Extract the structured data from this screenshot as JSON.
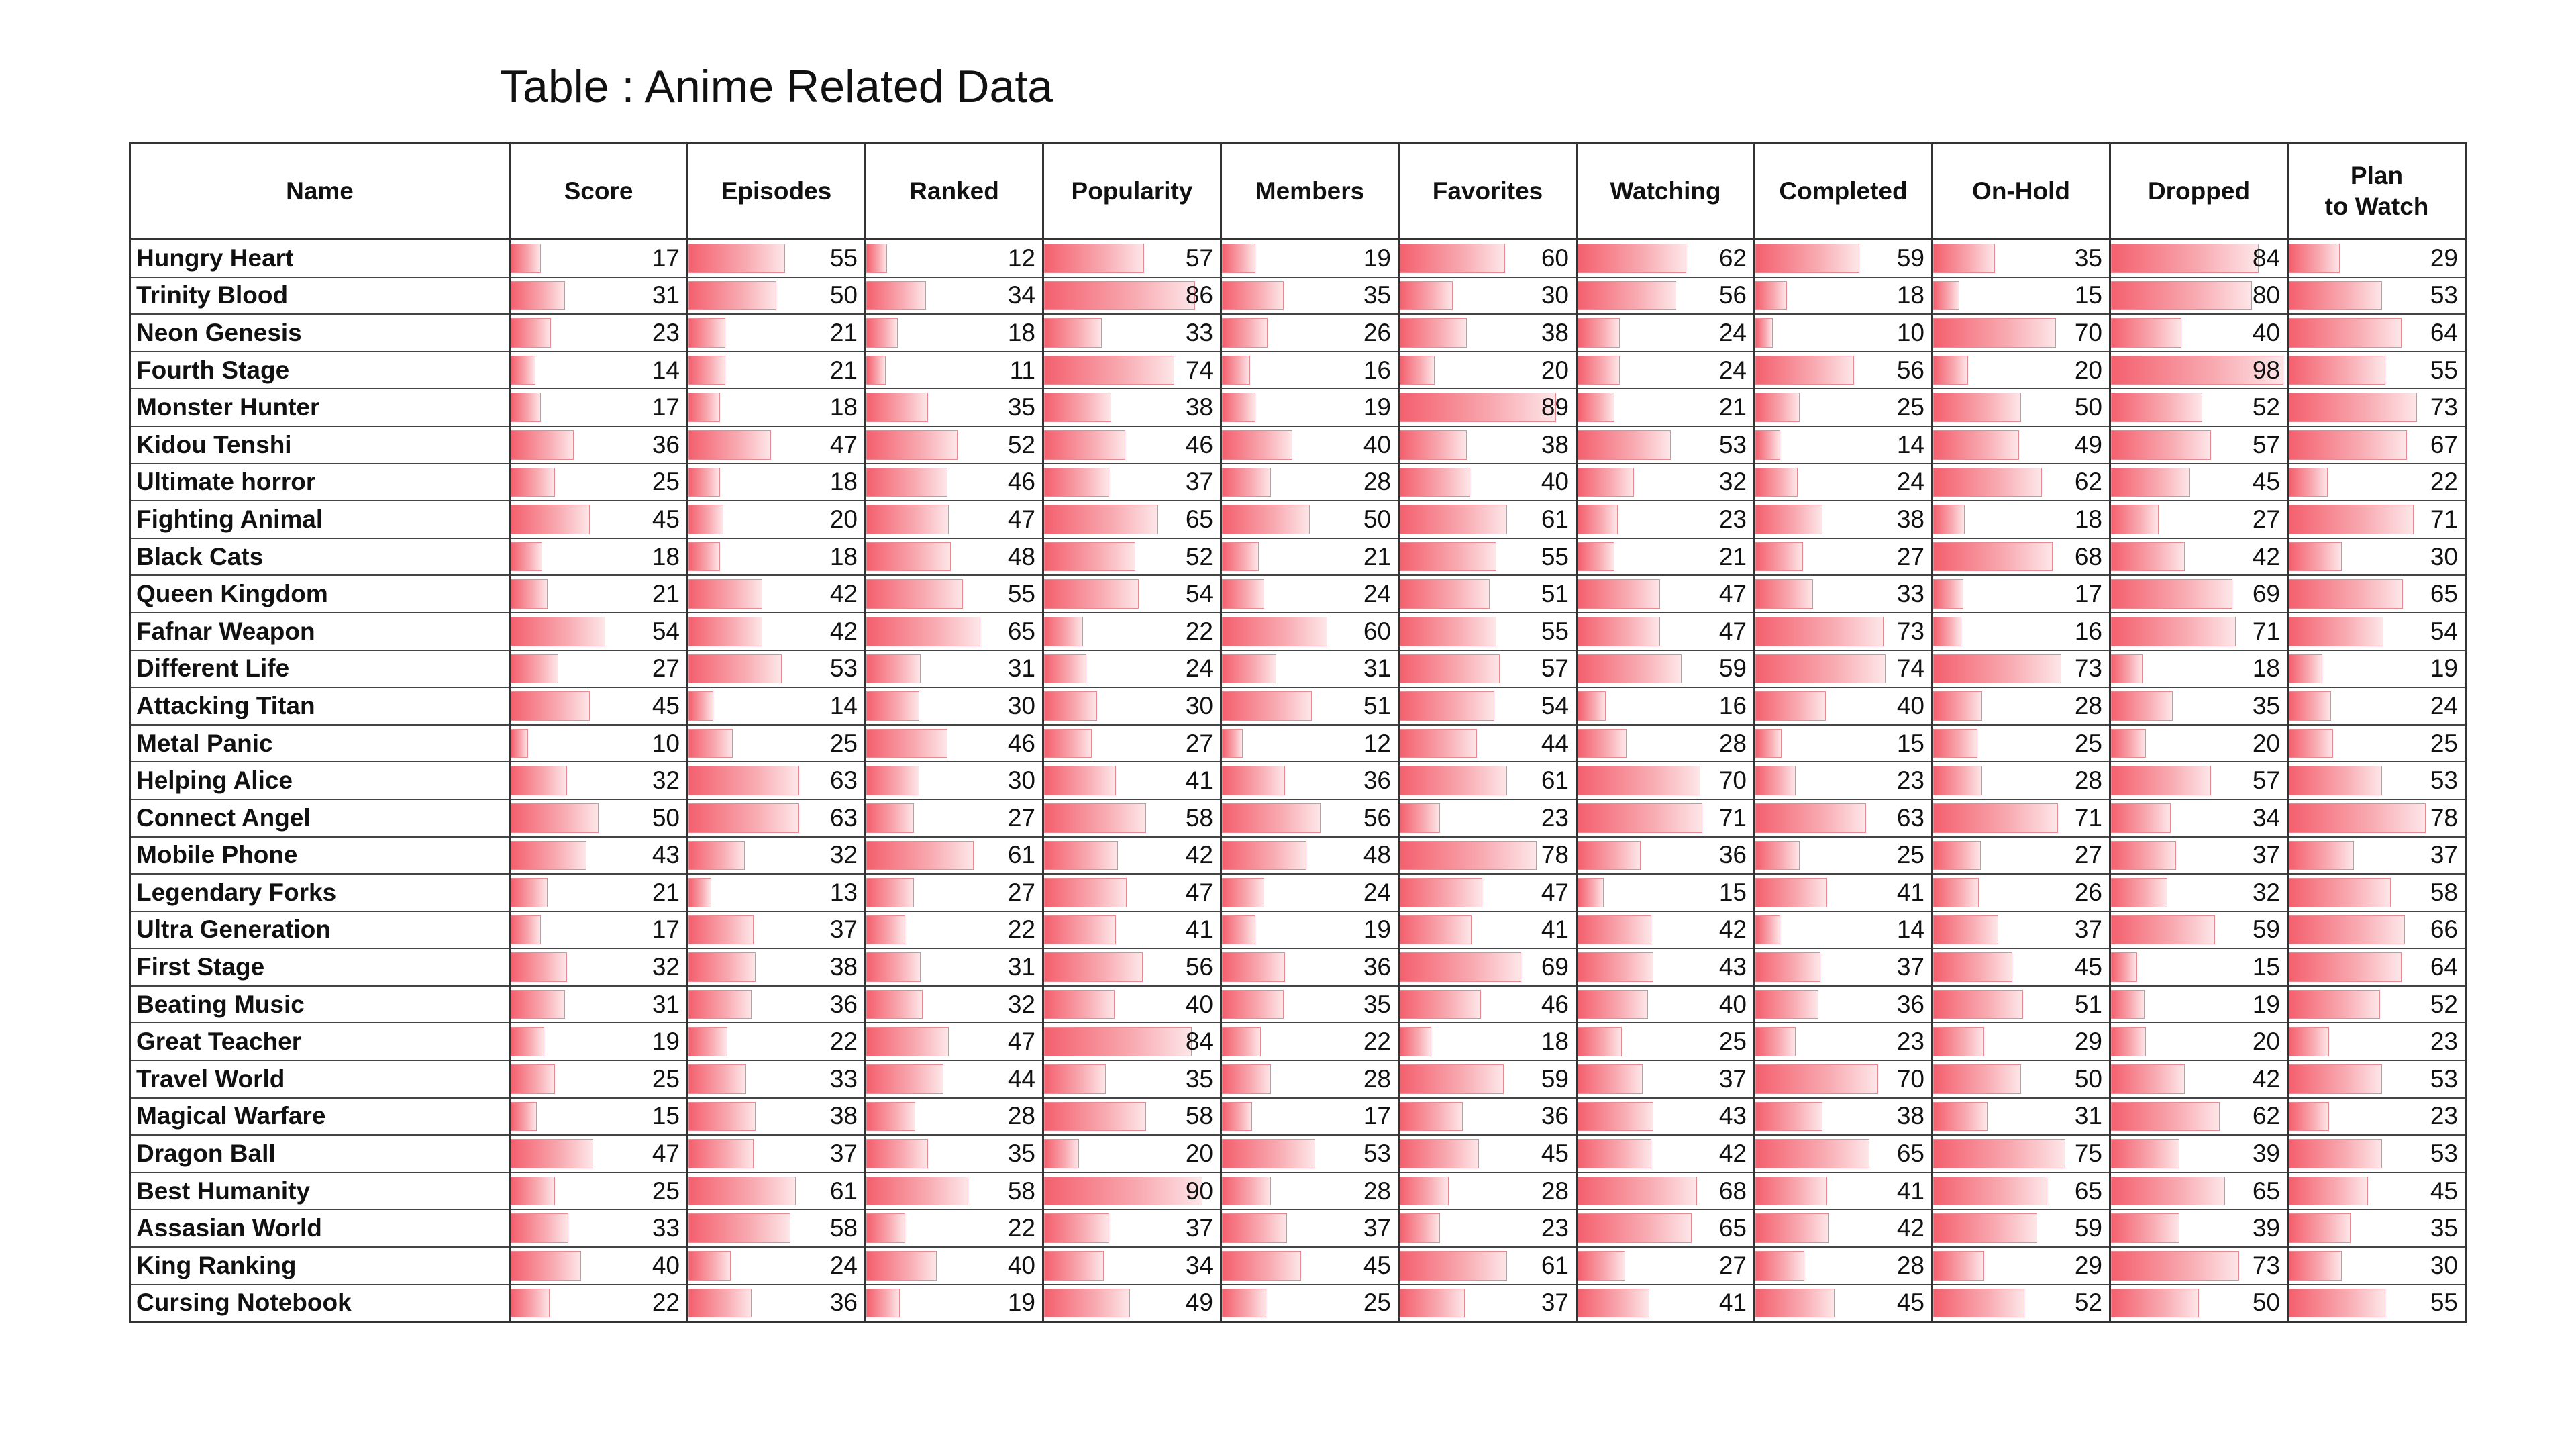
{
  "title": "Table : Anime Related Data",
  "columns": [
    "Name",
    "Score",
    "Episodes",
    "Ranked",
    "Popularity",
    "Members",
    "Favorites",
    "Watching",
    "Completed",
    "On-Hold",
    "Dropped",
    "Plan\nto Watch"
  ],
  "bar_color": "#f4606e",
  "bar_max": 100,
  "rows": [
    {
      "name": "Hungry Heart",
      "values": [
        17,
        55,
        12,
        57,
        19,
        60,
        62,
        59,
        35,
        84,
        29
      ]
    },
    {
      "name": "Trinity Blood",
      "values": [
        31,
        50,
        34,
        86,
        35,
        30,
        56,
        18,
        15,
        80,
        53
      ]
    },
    {
      "name": "Neon Genesis",
      "values": [
        23,
        21,
        18,
        33,
        26,
        38,
        24,
        10,
        70,
        40,
        64
      ]
    },
    {
      "name": "Fourth Stage",
      "values": [
        14,
        21,
        11,
        74,
        16,
        20,
        24,
        56,
        20,
        98,
        55
      ]
    },
    {
      "name": "Monster Hunter",
      "values": [
        17,
        18,
        35,
        38,
        19,
        89,
        21,
        25,
        50,
        52,
        73
      ]
    },
    {
      "name": "Kidou Tenshi",
      "values": [
        36,
        47,
        52,
        46,
        40,
        38,
        53,
        14,
        49,
        57,
        67
      ]
    },
    {
      "name": "Ultimate horror",
      "values": [
        25,
        18,
        46,
        37,
        28,
        40,
        32,
        24,
        62,
        45,
        22
      ]
    },
    {
      "name": "Fighting Animal",
      "values": [
        45,
        20,
        47,
        65,
        50,
        61,
        23,
        38,
        18,
        27,
        71
      ]
    },
    {
      "name": "Black Cats",
      "values": [
        18,
        18,
        48,
        52,
        21,
        55,
        21,
        27,
        68,
        42,
        30
      ]
    },
    {
      "name": "Queen Kingdom",
      "values": [
        21,
        42,
        55,
        54,
        24,
        51,
        47,
        33,
        17,
        69,
        65
      ]
    },
    {
      "name": "Fafnar Weapon",
      "values": [
        54,
        42,
        65,
        22,
        60,
        55,
        47,
        73,
        16,
        71,
        54
      ]
    },
    {
      "name": "Different Life",
      "values": [
        27,
        53,
        31,
        24,
        31,
        57,
        59,
        74,
        73,
        18,
        19
      ]
    },
    {
      "name": "Attacking Titan",
      "values": [
        45,
        14,
        30,
        30,
        51,
        54,
        16,
        40,
        28,
        35,
        24
      ]
    },
    {
      "name": "Metal Panic",
      "values": [
        10,
        25,
        46,
        27,
        12,
        44,
        28,
        15,
        25,
        20,
        25
      ]
    },
    {
      "name": "Helping Alice",
      "values": [
        32,
        63,
        30,
        41,
        36,
        61,
        70,
        23,
        28,
        57,
        53
      ]
    },
    {
      "name": "Connect Angel",
      "values": [
        50,
        63,
        27,
        58,
        56,
        23,
        71,
        63,
        71,
        34,
        78
      ]
    },
    {
      "name": "Mobile Phone",
      "values": [
        43,
        32,
        61,
        42,
        48,
        78,
        36,
        25,
        27,
        37,
        37
      ]
    },
    {
      "name": "Legendary Forks",
      "values": [
        21,
        13,
        27,
        47,
        24,
        47,
        15,
        41,
        26,
        32,
        58
      ]
    },
    {
      "name": "Ultra Generation",
      "values": [
        17,
        37,
        22,
        41,
        19,
        41,
        42,
        14,
        37,
        59,
        66
      ]
    },
    {
      "name": "First Stage",
      "values": [
        32,
        38,
        31,
        56,
        36,
        69,
        43,
        37,
        45,
        15,
        64
      ]
    },
    {
      "name": "Beating Music",
      "values": [
        31,
        36,
        32,
        40,
        35,
        46,
        40,
        36,
        51,
        19,
        52
      ]
    },
    {
      "name": "Great Teacher",
      "values": [
        19,
        22,
        47,
        84,
        22,
        18,
        25,
        23,
        29,
        20,
        23
      ]
    },
    {
      "name": "Travel World",
      "values": [
        25,
        33,
        44,
        35,
        28,
        59,
        37,
        70,
        50,
        42,
        53
      ]
    },
    {
      "name": "Magical Warfare",
      "values": [
        15,
        38,
        28,
        58,
        17,
        36,
        43,
        38,
        31,
        62,
        23
      ]
    },
    {
      "name": "Dragon Ball",
      "values": [
        47,
        37,
        35,
        20,
        53,
        45,
        42,
        65,
        75,
        39,
        53
      ]
    },
    {
      "name": "Best Humanity",
      "values": [
        25,
        61,
        58,
        90,
        28,
        28,
        68,
        41,
        65,
        65,
        45
      ]
    },
    {
      "name": "Assasian World",
      "values": [
        33,
        58,
        22,
        37,
        37,
        23,
        65,
        42,
        59,
        39,
        35
      ]
    },
    {
      "name": "King Ranking",
      "values": [
        40,
        24,
        40,
        34,
        45,
        61,
        27,
        28,
        29,
        73,
        30
      ]
    },
    {
      "name": "Cursing Notebook",
      "values": [
        22,
        36,
        19,
        49,
        25,
        37,
        41,
        45,
        52,
        50,
        55
      ]
    }
  ]
}
